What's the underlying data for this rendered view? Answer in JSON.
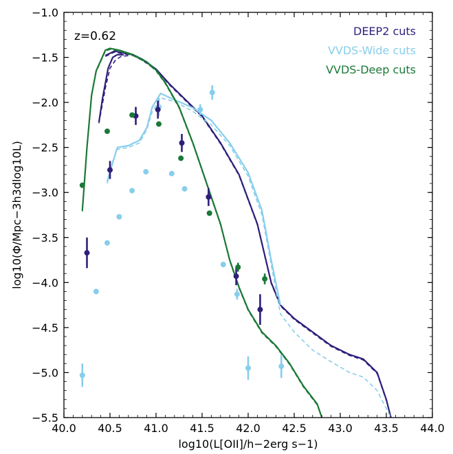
{
  "chart_data": {
    "type": "line",
    "annotation": "z=0.62",
    "xlabel": "log10(L[OII]/h−2erg s−1)",
    "ylabel": "log10(Φ/Mpc−3h3dlog10L)",
    "xlim": [
      40.0,
      44.0
    ],
    "ylim": [
      -5.5,
      -1.0
    ],
    "xticks": [
      40.0,
      40.5,
      41.0,
      41.5,
      42.0,
      42.5,
      43.0,
      43.5,
      44.0
    ],
    "yticks": [
      -5.5,
      -5.0,
      -4.5,
      -4.0,
      -3.5,
      -3.0,
      -2.5,
      -2.0,
      -1.5,
      -1.0
    ],
    "xtick_labels": [
      "40.0",
      "40.5",
      "41.0",
      "41.5",
      "42.0",
      "42.5",
      "43.0",
      "43.5",
      "44.0"
    ],
    "ytick_labels": [
      "−5.5",
      "−5.0",
      "−4.5",
      "−4.0",
      "−3.5",
      "−3.0",
      "−2.5",
      "−2.0",
      "−1.5",
      "−1.0"
    ],
    "legend_position": "top-right",
    "colors": {
      "deep2": "#2e1f7a",
      "vvds_wide": "#87ceeb",
      "vvds_deep": "#1b7837"
    },
    "legend": [
      {
        "label": "DEEP2 cuts",
        "color": "#2e1f7a"
      },
      {
        "label": "VVDS-Wide cuts",
        "color": "#87ceeb"
      },
      {
        "label": "VVDS-Deep cuts",
        "color": "#1b7837"
      }
    ],
    "lines": [
      {
        "color": "#2e1f7a",
        "dashed": false,
        "x": [
          40.45,
          40.55,
          40.65,
          40.75,
          40.85,
          41.0,
          41.15,
          41.3,
          41.5,
          41.7,
          41.9,
          42.1,
          42.25,
          42.35,
          42.5,
          42.7,
          42.9,
          43.1,
          43.25,
          43.4,
          43.5,
          43.55
        ],
        "y": [
          -1.48,
          -1.43,
          -1.45,
          -1.47,
          -1.52,
          -1.63,
          -1.8,
          -1.95,
          -2.15,
          -2.45,
          -2.8,
          -3.35,
          -4.0,
          -4.25,
          -4.4,
          -4.55,
          -4.7,
          -4.8,
          -4.85,
          -5.0,
          -5.3,
          -5.5
        ]
      },
      {
        "color": "#2e1f7a",
        "dashed": true,
        "x": [
          40.45,
          40.55,
          40.65,
          40.75,
          40.85,
          41.0,
          41.15,
          41.3,
          41.5,
          41.7,
          41.9,
          42.1,
          42.25,
          42.35,
          42.5,
          42.7,
          42.9,
          43.1,
          43.25,
          43.4,
          43.5,
          43.55
        ],
        "y": [
          -1.49,
          -1.44,
          -1.46,
          -1.48,
          -1.53,
          -1.64,
          -1.81,
          -1.96,
          -2.16,
          -2.46,
          -2.81,
          -3.36,
          -4.01,
          -4.26,
          -4.41,
          -4.56,
          -4.71,
          -4.81,
          -4.86,
          -5.01,
          -5.31,
          -5.5
        ]
      },
      {
        "color": "#2e1f7a",
        "dashed": false,
        "x": [
          40.38,
          40.42,
          40.48,
          40.53,
          40.58,
          40.65
        ],
        "y": [
          -2.22,
          -1.95,
          -1.62,
          -1.5,
          -1.47,
          -1.47
        ]
      },
      {
        "color": "#2e1f7a",
        "dashed": true,
        "x": [
          40.38,
          40.45,
          40.5,
          40.56,
          40.62,
          40.7
        ],
        "y": [
          -2.23,
          -1.84,
          -1.62,
          -1.53,
          -1.49,
          -1.48
        ]
      },
      {
        "color": "#87ceeb",
        "dashed": false,
        "x": [
          40.47,
          40.52,
          40.58,
          40.7,
          40.82,
          40.9,
          40.96,
          41.05,
          41.2,
          41.4,
          41.6,
          41.8,
          42.0,
          42.15,
          42.25,
          42.35
        ],
        "y": [
          -2.88,
          -2.7,
          -2.5,
          -2.48,
          -2.42,
          -2.28,
          -2.05,
          -1.9,
          -1.97,
          -2.06,
          -2.2,
          -2.45,
          -2.78,
          -3.2,
          -3.75,
          -4.25
        ]
      },
      {
        "color": "#87ceeb",
        "dashed": true,
        "x": [
          40.47,
          40.52,
          40.58,
          40.7,
          40.82,
          40.9,
          40.96,
          41.05,
          41.2,
          41.4,
          41.6,
          41.8,
          42.0,
          42.15,
          42.25,
          42.35,
          42.5,
          42.7,
          42.9,
          43.1,
          43.25,
          43.4,
          43.5,
          43.55
        ],
        "y": [
          -2.9,
          -2.68,
          -2.52,
          -2.5,
          -2.45,
          -2.3,
          -2.1,
          -1.95,
          -1.99,
          -2.1,
          -2.25,
          -2.48,
          -2.82,
          -3.25,
          -3.8,
          -4.35,
          -4.55,
          -4.75,
          -4.88,
          -5.0,
          -5.05,
          -5.2,
          -5.4,
          -5.5
        ]
      },
      {
        "color": "#1b7837",
        "dashed": false,
        "x": [
          40.2,
          40.25,
          40.3,
          40.35,
          40.45,
          40.5,
          40.6,
          40.75,
          40.9,
          41.0,
          41.1,
          41.25,
          41.4,
          41.55,
          41.7,
          41.8,
          41.9,
          42.0,
          42.15,
          42.3,
          42.45,
          42.6,
          42.75,
          42.8
        ],
        "y": [
          -3.2,
          -2.5,
          -1.92,
          -1.65,
          -1.42,
          -1.4,
          -1.42,
          -1.47,
          -1.55,
          -1.64,
          -1.78,
          -2.05,
          -2.45,
          -2.9,
          -3.35,
          -3.75,
          -4.05,
          -4.3,
          -4.55,
          -4.7,
          -4.9,
          -5.15,
          -5.35,
          -5.5
        ]
      },
      {
        "color": "#1b7837",
        "dashed": true,
        "x": [
          40.2,
          40.25,
          40.3,
          40.35,
          40.45,
          40.5,
          40.6,
          40.75,
          40.9,
          41.0,
          41.1,
          41.25,
          41.4,
          41.55,
          41.7,
          41.8,
          41.9,
          42.0,
          42.15,
          42.3,
          42.45,
          42.6,
          42.75,
          42.8
        ],
        "y": [
          -3.21,
          -2.51,
          -1.93,
          -1.66,
          -1.43,
          -1.41,
          -1.43,
          -1.48,
          -1.56,
          -1.65,
          -1.79,
          -2.06,
          -2.46,
          -2.91,
          -3.36,
          -3.76,
          -4.06,
          -4.31,
          -4.56,
          -4.71,
          -4.91,
          -5.16,
          -5.36,
          -5.5
        ]
      }
    ],
    "points": [
      {
        "series": "VVDS-Wide cuts",
        "color": "#87ceeb",
        "x": 40.2,
        "y": -5.03,
        "err": 0.13
      },
      {
        "series": "VVDS-Wide cuts",
        "color": "#87ceeb",
        "x": 40.35,
        "y": -4.1,
        "err": 0.03
      },
      {
        "series": "VVDS-Wide cuts",
        "color": "#87ceeb",
        "x": 40.47,
        "y": -3.56,
        "err": 0
      },
      {
        "series": "VVDS-Wide cuts",
        "color": "#87ceeb",
        "x": 40.6,
        "y": -3.27,
        "err": 0
      },
      {
        "series": "VVDS-Wide cuts",
        "color": "#87ceeb",
        "x": 40.74,
        "y": -2.98,
        "err": 0
      },
      {
        "series": "VVDS-Wide cuts",
        "color": "#87ceeb",
        "x": 40.89,
        "y": -2.77,
        "err": 0
      },
      {
        "series": "VVDS-Wide cuts",
        "color": "#87ceeb",
        "x": 41.03,
        "y": -2.05,
        "err": 0.1
      },
      {
        "series": "VVDS-Wide cuts",
        "color": "#87ceeb",
        "x": 41.17,
        "y": -2.79,
        "err": 0
      },
      {
        "series": "VVDS-Wide cuts",
        "color": "#87ceeb",
        "x": 41.31,
        "y": -2.96,
        "err": 0
      },
      {
        "series": "VVDS-Wide cuts",
        "color": "#87ceeb",
        "x": 41.48,
        "y": -2.08,
        "err": 0.06
      },
      {
        "series": "VVDS-Wide cuts",
        "color": "#87ceeb",
        "x": 41.61,
        "y": -1.89,
        "err": 0.08
      },
      {
        "series": "VVDS-Wide cuts",
        "color": "#87ceeb",
        "x": 41.73,
        "y": -3.8,
        "err": 0.03
      },
      {
        "series": "VVDS-Wide cuts",
        "color": "#87ceeb",
        "x": 41.88,
        "y": -4.13,
        "err": 0.06
      },
      {
        "series": "VVDS-Wide cuts",
        "color": "#87ceeb",
        "x": 42.0,
        "y": -4.95,
        "err": 0.13
      },
      {
        "series": "VVDS-Wide cuts",
        "color": "#87ceeb",
        "x": 42.36,
        "y": -4.93,
        "err": 0.13
      },
      {
        "series": "DEEP2 cuts",
        "color": "#2e1f7a",
        "x": 40.25,
        "y": -3.67,
        "err": 0.17
      },
      {
        "series": "DEEP2 cuts",
        "color": "#2e1f7a",
        "x": 40.5,
        "y": -2.75,
        "err": 0.1
      },
      {
        "series": "DEEP2 cuts",
        "color": "#2e1f7a",
        "x": 40.78,
        "y": -2.15,
        "err": 0.1
      },
      {
        "series": "DEEP2 cuts",
        "color": "#2e1f7a",
        "x": 41.02,
        "y": -2.08,
        "err": 0.1
      },
      {
        "series": "DEEP2 cuts",
        "color": "#2e1f7a",
        "x": 41.28,
        "y": -2.45,
        "err": 0.1
      },
      {
        "series": "DEEP2 cuts",
        "color": "#2e1f7a",
        "x": 41.57,
        "y": -3.05,
        "err": 0.1
      },
      {
        "series": "DEEP2 cuts",
        "color": "#2e1f7a",
        "x": 41.87,
        "y": -3.93,
        "err": 0.1
      },
      {
        "series": "DEEP2 cuts",
        "color": "#2e1f7a",
        "x": 42.13,
        "y": -4.3,
        "err": 0.17
      },
      {
        "series": "VVDS-Deep cuts",
        "color": "#1b7837",
        "x": 40.2,
        "y": -2.92,
        "err": 0
      },
      {
        "series": "VVDS-Deep cuts",
        "color": "#1b7837",
        "x": 40.47,
        "y": -2.32,
        "err": 0
      },
      {
        "series": "VVDS-Deep cuts",
        "color": "#1b7837",
        "x": 40.74,
        "y": -2.14,
        "err": 0
      },
      {
        "series": "VVDS-Deep cuts",
        "color": "#1b7837",
        "x": 41.03,
        "y": -2.24,
        "err": 0
      },
      {
        "series": "VVDS-Deep cuts",
        "color": "#1b7837",
        "x": 41.27,
        "y": -2.62,
        "err": 0
      },
      {
        "series": "VVDS-Deep cuts",
        "color": "#1b7837",
        "x": 41.58,
        "y": -3.23,
        "err": 0
      },
      {
        "series": "VVDS-Deep cuts",
        "color": "#1b7837",
        "x": 41.89,
        "y": -3.83,
        "err": 0.05
      },
      {
        "series": "VVDS-Deep cuts",
        "color": "#1b7837",
        "x": 42.18,
        "y": -3.96,
        "err": 0.06
      }
    ]
  }
}
